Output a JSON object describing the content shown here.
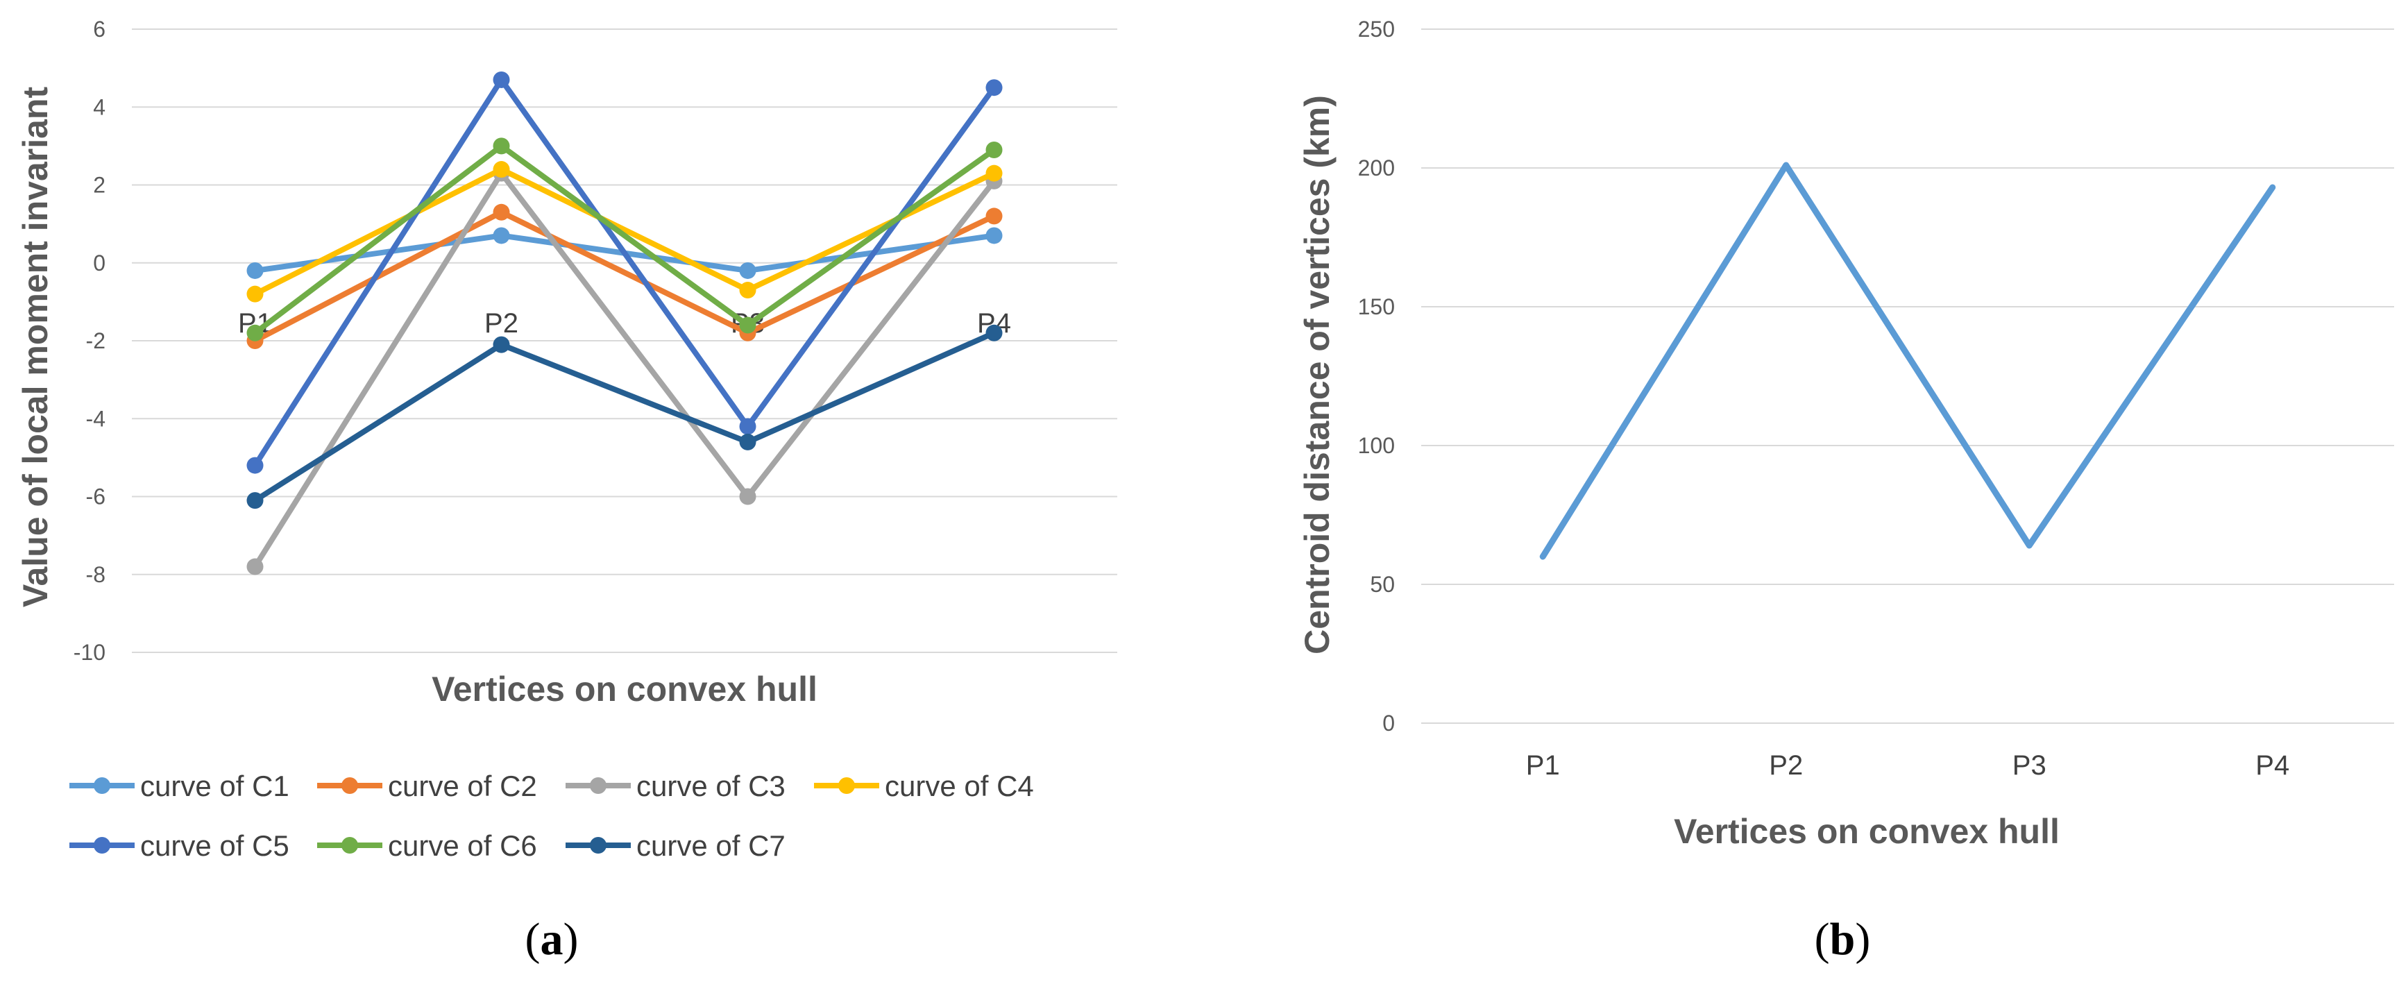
{
  "chart_data": [
    {
      "type": "line",
      "panel": "(a)",
      "panel_letter": "a",
      "title": "",
      "xlabel": "Vertices on convex hull",
      "ylabel": "Value of  local moment invariant",
      "categories": [
        "P1",
        "P2",
        "P3",
        "P4"
      ],
      "ylim": [
        -10,
        6
      ],
      "yticks": [
        6,
        4,
        2,
        0,
        -2,
        -4,
        -6,
        -8,
        -10
      ],
      "grid": true,
      "legend_position": "bottom",
      "series": [
        {
          "name": "curve of C1",
          "color": "#5B9BD5",
          "values": [
            -0.2,
            0.7,
            -0.2,
            0.7
          ]
        },
        {
          "name": "curve of C2",
          "color": "#ED7D31",
          "values": [
            -2.0,
            1.3,
            -1.8,
            1.2
          ]
        },
        {
          "name": "curve of C3",
          "color": "#A5A5A5",
          "values": [
            -7.8,
            2.3,
            -6.0,
            2.1
          ]
        },
        {
          "name": "curve of C4",
          "color": "#FFC000",
          "values": [
            -0.8,
            2.4,
            -0.7,
            2.3
          ]
        },
        {
          "name": "curve of C5",
          "color": "#4472C4",
          "values": [
            -5.2,
            4.7,
            -4.2,
            4.5
          ]
        },
        {
          "name": "curve of C6",
          "color": "#70AD47",
          "values": [
            -1.8,
            3.0,
            -1.6,
            2.9
          ]
        },
        {
          "name": "curve of C7",
          "color": "#255E91",
          "values": [
            -6.1,
            -2.1,
            -4.6,
            -1.8
          ]
        }
      ]
    },
    {
      "type": "line",
      "panel": "(b)",
      "panel_letter": "b",
      "title": "",
      "xlabel": "Vertices on convex hull",
      "ylabel": "Centroid distance of vertices (km)",
      "categories": [
        "P1",
        "P2",
        "P3",
        "P4"
      ],
      "ylim": [
        0,
        250
      ],
      "yticks": [
        250,
        200,
        150,
        100,
        50,
        0
      ],
      "grid": true,
      "series": [
        {
          "name": "Centroid distance",
          "color": "#5B9BD5",
          "values": [
            60,
            201,
            64,
            193
          ]
        }
      ]
    }
  ]
}
